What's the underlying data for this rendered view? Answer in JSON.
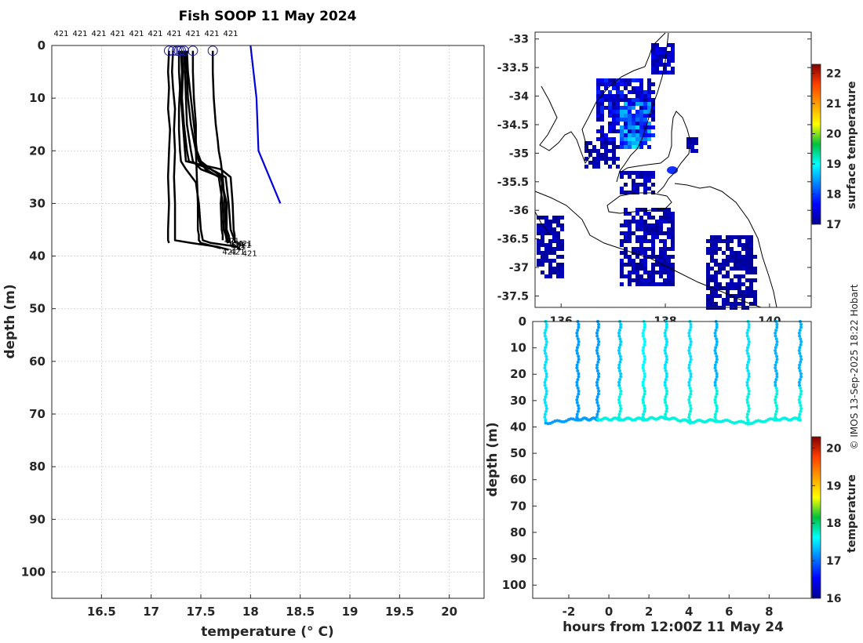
{
  "title": "Fish SOOP 11 May 2024",
  "credit": "© IMOS 13-Sep-2025 18:22 Hobart",
  "colors": {
    "profiles": "#000000",
    "reference": "#0000dd",
    "axis": "#262626"
  },
  "chart_data": [
    {
      "type": "line",
      "xlabel": "temperature (° C)",
      "ylabel": "depth (m)",
      "xlim": [
        16.0,
        20.35
      ],
      "ylim": [
        105,
        0
      ],
      "x_ticks": [
        16.5,
        17,
        17.5,
        18,
        18.5,
        19,
        19.5,
        20
      ],
      "y_ticks": [
        0,
        10,
        20,
        30,
        40,
        50,
        60,
        70,
        80,
        90,
        100
      ],
      "top_labels": [
        "421",
        "421",
        "421",
        "421",
        "421",
        "421",
        "421",
        "421",
        "421",
        "421"
      ],
      "profile_label": "421",
      "reference": {
        "temperature": [
          18.0,
          18.03,
          18.06,
          18.08,
          18.3
        ],
        "depth": [
          0,
          5,
          10,
          20,
          30
        ]
      },
      "series": [
        {
          "temperature": [
            17.18,
            17.17,
            17.18,
            17.17,
            17.19,
            17.18,
            17.17,
            17.18,
            17.17,
            17.17,
            17.18
          ],
          "depth": [
            1,
            5,
            8,
            12,
            16,
            20,
            25,
            30,
            35,
            37,
            37.5
          ]
        },
        {
          "temperature": [
            17.22,
            17.21,
            17.22,
            17.24,
            17.23,
            17.24,
            17.23,
            17.24,
            17.24,
            17.24,
            17.4,
            17.66,
            17.78
          ],
          "depth": [
            1,
            5,
            8,
            12,
            16,
            20,
            25,
            30,
            35,
            37,
            37.5,
            38.2,
            38.8
          ]
        },
        {
          "temperature": [
            17.28,
            17.28,
            17.29,
            17.28,
            17.28,
            17.29,
            17.3,
            17.35,
            17.45,
            17.48,
            17.5,
            17.52,
            17.6,
            17.86,
            17.9
          ],
          "depth": [
            1,
            5,
            8,
            12,
            16,
            20,
            22,
            23.5,
            26,
            30,
            35,
            37,
            37.5,
            38.2,
            38.8
          ]
        },
        {
          "temperature": [
            17.3,
            17.31,
            17.3,
            17.32,
            17.34,
            17.35,
            17.7,
            17.8,
            17.82,
            17.83,
            17.84,
            17.84,
            17.85
          ],
          "depth": [
            1,
            5,
            10,
            15,
            20,
            22,
            23.5,
            25,
            30,
            35,
            36,
            37,
            37.5
          ]
        },
        {
          "temperature": [
            17.31,
            17.32,
            17.31,
            17.33,
            17.36,
            17.38,
            17.6,
            17.75,
            17.78,
            17.8,
            17.82,
            17.84,
            17.84
          ],
          "depth": [
            1,
            5,
            10,
            15,
            20,
            22,
            23.5,
            25,
            30,
            35,
            36,
            37,
            37.5
          ]
        },
        {
          "temperature": [
            17.33,
            17.34,
            17.35,
            17.36,
            17.4,
            17.42,
            17.5,
            17.7,
            17.76,
            17.76,
            17.78,
            17.79,
            17.79
          ],
          "depth": [
            1,
            5,
            10,
            15,
            20,
            22,
            23.5,
            25,
            30,
            35,
            36,
            37,
            37.5
          ]
        },
        {
          "temperature": [
            17.34,
            17.36,
            17.37,
            17.4,
            17.45,
            17.48,
            17.55,
            17.68,
            17.72,
            17.73,
            17.75,
            17.76,
            17.77
          ],
          "depth": [
            1,
            5,
            10,
            15,
            20,
            22,
            23.5,
            25,
            30,
            35,
            36,
            37,
            37.5
          ]
        },
        {
          "temperature": [
            17.36,
            17.37,
            17.4,
            17.43,
            17.46,
            17.5,
            17.6,
            17.72,
            17.74,
            17.75,
            17.76,
            17.77,
            17.78
          ],
          "depth": [
            1,
            5,
            10,
            15,
            20,
            22,
            23.5,
            25,
            30,
            35,
            36,
            37,
            37.5
          ]
        },
        {
          "temperature": [
            17.42,
            17.42,
            17.43,
            17.45,
            17.45,
            17.46,
            17.47,
            17.47,
            17.48,
            17.48,
            17.5,
            17.7
          ],
          "depth": [
            1,
            5,
            10,
            15,
            20,
            25,
            30,
            35,
            36,
            37,
            37.5,
            38.5
          ]
        },
        {
          "temperature": [
            17.62,
            17.62,
            17.63,
            17.65,
            17.67,
            17.68,
            17.7,
            17.72,
            17.7,
            17.71,
            17.72,
            17.72
          ],
          "depth": [
            1,
            5,
            10,
            15,
            18,
            20,
            22,
            25,
            30,
            35,
            36,
            37
          ]
        }
      ],
      "surface_markers": [
        17.18,
        17.22,
        17.26,
        17.28,
        17.3,
        17.33,
        17.42,
        17.62
      ]
    },
    {
      "type": "heatmap",
      "colorbar_label": "surface temperature",
      "colorbar_range": [
        17,
        22.3
      ],
      "colorbar_ticks": [
        17,
        18,
        19,
        20,
        21,
        22
      ],
      "lat_ticks": [
        -33,
        -33.5,
        -34,
        -34.5,
        -35,
        -35.5,
        -36,
        -36.5,
        -37,
        -37.5
      ],
      "lon_ticks": [
        "136",
        "138",
        "140"
      ],
      "lat_range": [
        -32.88,
        -37.7
      ],
      "lon_range": [
        135.5,
        140.8
      ]
    },
    {
      "type": "scatter",
      "xlabel": "hours from 12:00Z 11 May 24",
      "ylabel": "depth (m)",
      "xlim": [
        -3.8,
        10.1
      ],
      "ylim": [
        105,
        0
      ],
      "x_ticks": [
        -2,
        0,
        2,
        4,
        6,
        8
      ],
      "y_ticks": [
        0,
        10,
        20,
        30,
        40,
        50,
        60,
        70,
        80,
        90,
        100
      ],
      "colorbar_label": "temperature",
      "colorbar_range": [
        16,
        20.3
      ],
      "colorbar_ticks": [
        16,
        17,
        18,
        19,
        20
      ],
      "casts": [
        {
          "time": -3.15,
          "bottom": 38.5,
          "temperature": 17.5
        },
        {
          "time": -1.55,
          "bottom": 37.0,
          "temperature": 17.2
        },
        {
          "time": -0.55,
          "bottom": 37.0,
          "temperature": 17.2
        },
        {
          "time": 0.55,
          "bottom": 37.0,
          "temperature": 17.4
        },
        {
          "time": 1.75,
          "bottom": 37.0,
          "temperature": 17.6
        },
        {
          "time": 2.85,
          "bottom": 36.5,
          "temperature": 17.5
        },
        {
          "time": 4.05,
          "bottom": 38.0,
          "temperature": 17.5
        },
        {
          "time": 5.35,
          "bottom": 37.5,
          "temperature": 17.3
        },
        {
          "time": 6.95,
          "bottom": 38.5,
          "temperature": 17.5
        },
        {
          "time": 8.35,
          "bottom": 37.0,
          "temperature": 17.3
        },
        {
          "time": 9.55,
          "bottom": 37.0,
          "temperature": 17.3
        }
      ]
    }
  ]
}
